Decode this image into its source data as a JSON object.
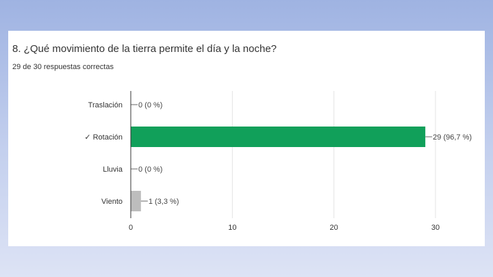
{
  "question": "8. ¿Qué movimiento de la tierra permite el día y la noche?",
  "summary": "29 de 30 respuestas correctas",
  "colors": {
    "correct": "#11a05a",
    "other": "#bdbdbd",
    "grid": "#e3e3e3",
    "axis": "#333333"
  },
  "chart_data": {
    "type": "bar",
    "orientation": "horizontal",
    "categories": [
      "Traslación",
      "✓ Rotación",
      "Lluvia",
      "Viento"
    ],
    "values": [
      0,
      29,
      0,
      1
    ],
    "value_labels": [
      "0 (0 %)",
      "29 (96,7 %)",
      "0 (0 %)",
      "1 (3,3 %)"
    ],
    "correct": [
      false,
      true,
      false,
      false
    ],
    "xlim": [
      0,
      30
    ],
    "xticks": [
      "0",
      "10",
      "20",
      "30"
    ],
    "grid": true
  }
}
